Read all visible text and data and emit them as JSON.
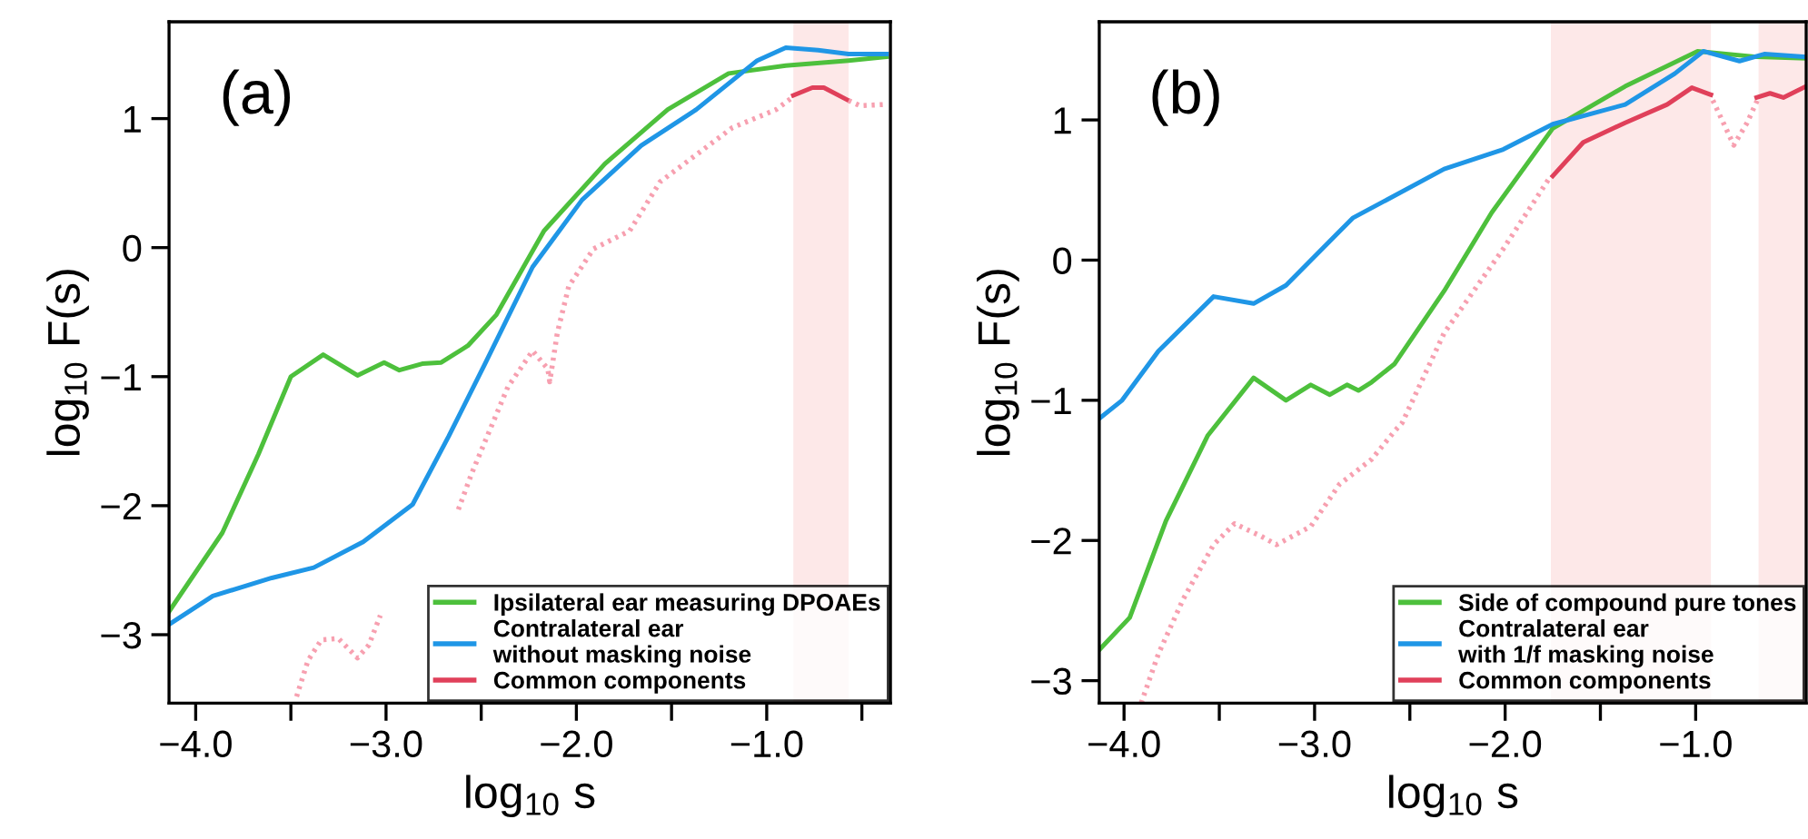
{
  "chart_data": [
    {
      "type": "line",
      "annotations": [
        "(a)"
      ],
      "xlabel": "log$_{10}$ s",
      "ylabel": "log$_{10}$ F(s)",
      "xlim": [
        -4.14,
        -0.35
      ],
      "ylim": [
        -3.53,
        1.75
      ],
      "xticks": [
        {
          "value": -4.0,
          "label": "−4.0"
        },
        {
          "value": -3.5,
          "label": null
        },
        {
          "value": -3.0,
          "label": "−3.0"
        },
        {
          "value": -2.5,
          "label": null
        },
        {
          "value": -2.0,
          "label": "−2.0"
        },
        {
          "value": -1.5,
          "label": null
        },
        {
          "value": -1.0,
          "label": "−1.0"
        },
        {
          "value": -0.5,
          "label": null
        }
      ],
      "yticks": [
        {
          "value": -3,
          "label": "−3"
        },
        {
          "value": -2,
          "label": "−2"
        },
        {
          "value": -1,
          "label": "−1"
        },
        0,
        1
      ],
      "grid": false,
      "legend": "bottom right",
      "line_style": "solid",
      "bands": [
        {
          "axis": "x",
          "from": -0.86,
          "to": -0.57,
          "color": "#fde8e8"
        }
      ],
      "series": [
        {
          "name": "Ipsilateral ear measuring DPOAEs",
          "color": "#4dc03c",
          "x": [
            -4.14,
            -3.86,
            -3.67,
            -3.5,
            -3.33,
            -3.15,
            -3.01,
            -2.93,
            -2.81,
            -2.71,
            -2.57,
            -2.42,
            -2.17,
            -1.85,
            -1.52,
            -1.2,
            -0.9,
            -0.57,
            -0.37
          ],
          "values": [
            -2.82,
            -2.21,
            -1.6,
            -1.0,
            -0.83,
            -0.99,
            -0.89,
            -0.95,
            -0.9,
            -0.89,
            -0.76,
            -0.52,
            0.13,
            0.65,
            1.07,
            1.35,
            1.41,
            1.45,
            1.48
          ]
        },
        {
          "name": "Contralateral ear\nwithout masking noise",
          "color": "#1f96e6",
          "x": [
            -4.14,
            -3.91,
            -3.6,
            -3.38,
            -3.12,
            -2.86,
            -2.67,
            -2.48,
            -2.23,
            -1.97,
            -1.66,
            -1.37,
            -1.05,
            -0.9,
            -0.73,
            -0.57,
            -0.37
          ],
          "values": [
            -2.92,
            -2.7,
            -2.56,
            -2.48,
            -2.28,
            -1.99,
            -1.46,
            -0.9,
            -0.15,
            0.37,
            0.79,
            1.07,
            1.45,
            1.55,
            1.53,
            1.5,
            1.5
          ]
        },
        {
          "name": "Common components",
          "color": "#e0405a",
          "x": [
            -0.86,
            -0.76,
            -0.7,
            -0.57
          ],
          "values": [
            1.18,
            1.24,
            1.24,
            1.14
          ]
        },
        {
          "color": "#f7a0b0",
          "line_style": "dotted",
          "x": [
            -3.47,
            -3.41,
            -3.34,
            -3.25,
            -3.15,
            -3.09,
            -3.03,
            -2.9,
            -2.74,
            -2.67,
            -2.62,
            -2.55,
            -2.36,
            -2.23,
            -2.15,
            -2.14,
            -2.1,
            -2.04,
            -1.91,
            -1.72,
            -1.56,
            -1.37,
            -1.18,
            -0.95,
            -0.86,
            -0.7,
            -0.57,
            -0.51,
            -0.37
          ],
          "values": [
            -3.48,
            -3.2,
            -3.04,
            -3.03,
            -3.18,
            -3.08,
            -2.85,
            null,
            null,
            null,
            -2.03,
            -1.75,
            -1.08,
            -0.8,
            -0.94,
            -1.04,
            -0.66,
            -0.3,
            -0.01,
            0.13,
            0.51,
            0.72,
            0.93,
            1.07,
            1.17,
            null,
            1.14,
            1.1,
            1.11
          ]
        }
      ]
    },
    {
      "type": "line",
      "annotations": [
        "(b)"
      ],
      "xlabel": "log$_{10}$ s",
      "ylabel": "log$_{10}$ F(s)",
      "xlim": [
        -4.13,
        -0.42
      ],
      "ylim": [
        -3.16,
        1.7
      ],
      "xticks": [
        {
          "value": -4.0,
          "label": "−4.0"
        },
        {
          "value": -3.5,
          "label": null
        },
        {
          "value": -3.0,
          "label": "−3.0"
        },
        {
          "value": -2.5,
          "label": null
        },
        {
          "value": -2.0,
          "label": "−2.0"
        },
        {
          "value": -1.5,
          "label": null
        },
        {
          "value": -1.0,
          "label": "−1.0"
        }
      ],
      "yticks": [
        {
          "value": -3,
          "label": "−3"
        },
        {
          "value": -2,
          "label": "−2"
        },
        {
          "value": -1,
          "label": "−1"
        },
        0,
        1
      ],
      "grid": false,
      "legend": "bottom right",
      "line_style": "solid",
      "bands": [
        {
          "axis": "x",
          "from": -1.76,
          "to": -0.92,
          "color": "#fde8e8"
        },
        {
          "axis": "x",
          "from": -0.67,
          "to": -0.42,
          "color": "#fde8e8"
        }
      ],
      "series": [
        {
          "name": "Side of compound pure tones",
          "color": "#4dc03c",
          "x": [
            -4.13,
            -3.97,
            -3.78,
            -3.56,
            -3.32,
            -3.15,
            -3.02,
            -2.92,
            -2.83,
            -2.77,
            -2.7,
            -2.58,
            -2.32,
            -2.07,
            -1.75,
            -1.37,
            -0.99,
            -0.68,
            -0.42
          ],
          "values": [
            -2.78,
            -2.55,
            -1.86,
            -1.25,
            -0.84,
            -1.0,
            -0.89,
            -0.96,
            -0.89,
            -0.93,
            -0.87,
            -0.74,
            -0.22,
            0.34,
            0.94,
            1.24,
            1.49,
            1.45,
            1.44
          ]
        },
        {
          "name": "Contralateral ear\nwith 1/f masking noise",
          "color": "#1f96e6",
          "x": [
            -4.13,
            -4.01,
            -3.82,
            -3.53,
            -3.32,
            -3.15,
            -2.8,
            -2.32,
            -2.01,
            -1.75,
            -1.37,
            -1.11,
            -0.96,
            -0.77,
            -0.64,
            -0.42
          ],
          "values": [
            -1.13,
            -1.0,
            -0.65,
            -0.26,
            -0.31,
            -0.18,
            0.3,
            0.65,
            0.79,
            0.97,
            1.11,
            1.33,
            1.49,
            1.42,
            1.47,
            1.45
          ]
        },
        {
          "name": "Common components",
          "color": "#e0405a",
          "x": [
            -1.75,
            -1.59,
            -1.37,
            -1.15,
            -1.02,
            -0.92,
            -0.8,
            -0.68,
            -0.61,
            -0.54,
            -0.42
          ],
          "values": [
            0.6,
            0.84,
            0.98,
            1.11,
            1.23,
            1.18,
            null,
            1.16,
            1.19,
            1.16,
            1.24
          ]
        },
        {
          "color": "#f7a0b0",
          "line_style": "dotted",
          "x": [
            -3.91,
            -3.82,
            -3.69,
            -3.53,
            -3.42,
            -3.28,
            -3.2,
            -3.02,
            -2.87,
            -2.7,
            -2.58,
            -2.54,
            -2.32,
            -2.01,
            -1.77,
            -1.3,
            -0.91,
            -0.8,
            -0.73,
            -0.67
          ],
          "values": [
            -3.16,
            -2.81,
            -2.42,
            -2.03,
            -1.88,
            -1.97,
            -2.03,
            -1.9,
            -1.6,
            -1.42,
            -1.22,
            -1.16,
            -0.52,
            0.08,
            0.58,
            null,
            1.14,
            0.82,
            0.98,
            1.16
          ]
        }
      ]
    }
  ]
}
